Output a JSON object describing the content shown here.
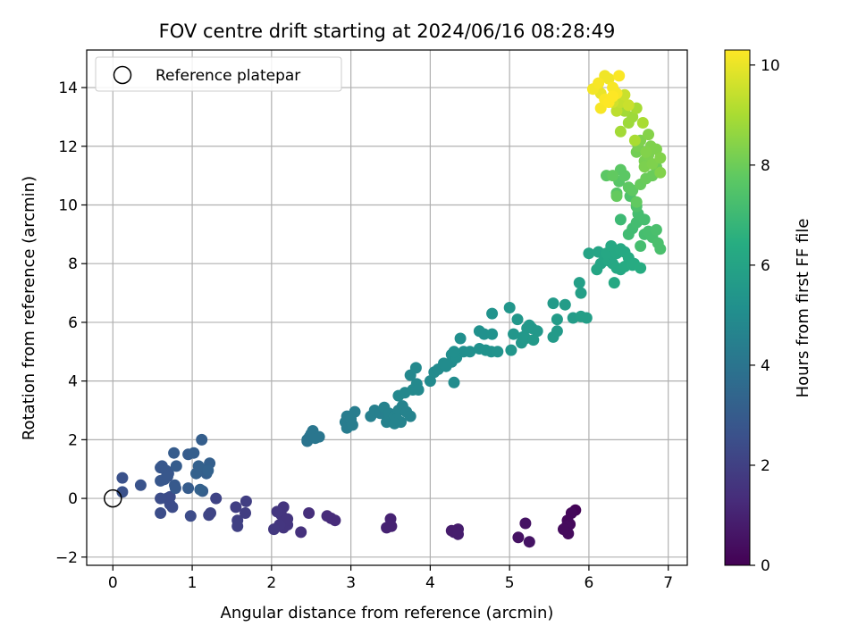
{
  "chart_data": {
    "type": "scatter",
    "title": "FOV centre drift starting at 2024/06/16 08:28:49",
    "xlabel": "Angular distance from reference (arcmin)",
    "ylabel": "Rotation from reference (arcmin)",
    "xlim": [
      -0.33,
      7.24
    ],
    "ylim": [
      -2.28,
      15.28
    ],
    "xticks": [
      0,
      1,
      2,
      3,
      4,
      5,
      6,
      7
    ],
    "yticks": [
      -2,
      0,
      2,
      4,
      6,
      8,
      10,
      12,
      14
    ],
    "grid": true,
    "legend": {
      "placement": "top-left",
      "entries": [
        "Reference platepar"
      ]
    },
    "reference_point": {
      "x": 0,
      "y": 0,
      "marker": "hollow-circle",
      "label": "Reference platepar"
    },
    "colorbar": {
      "label": "Hours from first FF file",
      "range": [
        0,
        10.3
      ],
      "ticks": [
        0,
        2,
        4,
        6,
        8,
        10
      ],
      "colormap": "viridis"
    },
    "series": [
      {
        "points": [
          [
            5.83,
            -0.4,
            0.1
          ],
          [
            5.78,
            -0.5,
            0.2
          ],
          [
            5.73,
            -0.75,
            0.2
          ],
          [
            5.72,
            -0.95,
            0.3
          ],
          [
            5.74,
            -1.2,
            0.3
          ],
          [
            5.68,
            -1.05,
            0.3
          ],
          [
            5.76,
            -0.88,
            0.25
          ],
          [
            5.2,
            -0.85,
            0.5
          ],
          [
            5.11,
            -1.33,
            0.5
          ],
          [
            5.25,
            -1.48,
            0.55
          ],
          [
            4.35,
            -1.05,
            0.8
          ],
          [
            4.3,
            -1.15,
            0.8
          ],
          [
            4.35,
            -1.22,
            0.85
          ],
          [
            4.27,
            -1.1,
            0.8
          ],
          [
            3.5,
            -0.7,
            1.0
          ],
          [
            3.45,
            -1.0,
            1.0
          ],
          [
            3.51,
            -0.95,
            1.0
          ],
          [
            2.8,
            -0.75,
            1.3
          ],
          [
            2.7,
            -0.6,
            1.3
          ],
          [
            2.75,
            -0.68,
            1.25
          ],
          [
            2.47,
            -0.5,
            1.4
          ],
          [
            2.37,
            -1.15,
            1.45
          ],
          [
            2.2,
            -0.7,
            1.6
          ],
          [
            2.15,
            -0.3,
            1.6
          ],
          [
            2.07,
            -0.45,
            1.65
          ],
          [
            2.1,
            -0.9,
            1.65
          ],
          [
            2.2,
            -0.9,
            1.6
          ],
          [
            2.15,
            -1.0,
            1.6
          ],
          [
            2.03,
            -1.05,
            1.7
          ],
          [
            2.12,
            -0.55,
            1.6
          ],
          [
            2.18,
            -0.75,
            1.6
          ],
          [
            1.68,
            -0.1,
            1.9
          ],
          [
            1.67,
            -0.5,
            1.9
          ],
          [
            1.55,
            -0.3,
            1.95
          ],
          [
            1.57,
            -0.75,
            2.0
          ],
          [
            1.57,
            -0.95,
            2.0
          ],
          [
            1.3,
            0.0,
            2.1
          ],
          [
            1.23,
            -0.5,
            2.15
          ],
          [
            1.21,
            -0.57,
            2.15
          ],
          [
            0.98,
            -0.6,
            2.4
          ],
          [
            0.75,
            -0.3,
            2.4
          ],
          [
            0.72,
            -0.2,
            2.4
          ],
          [
            0.6,
            -0.5,
            2.45
          ],
          [
            0.68,
            0.0,
            2.4
          ],
          [
            0.72,
            0.05,
            2.4
          ],
          [
            0.6,
            0.0,
            2.45
          ],
          [
            0.12,
            0.7,
            2.6
          ],
          [
            0.12,
            0.22,
            2.6
          ],
          [
            0.35,
            0.45,
            2.65
          ],
          [
            0.6,
            1.05,
            2.8
          ],
          [
            0.65,
            0.65,
            2.8
          ],
          [
            0.7,
            0.85,
            2.8
          ],
          [
            0.6,
            0.6,
            2.8
          ],
          [
            0.62,
            1.1,
            2.8
          ],
          [
            0.67,
            0.95,
            2.8
          ],
          [
            0.69,
            0.75,
            2.8
          ],
          [
            0.78,
            0.45,
            2.9
          ],
          [
            0.79,
            0.35,
            2.9
          ],
          [
            0.95,
            0.35,
            3.0
          ],
          [
            0.95,
            1.5,
            3.0
          ],
          [
            0.8,
            1.1,
            3.0
          ],
          [
            0.77,
            1.55,
            3.0
          ],
          [
            1.02,
            1.55,
            3.1
          ],
          [
            1.1,
            1.0,
            3.1
          ],
          [
            1.15,
            0.95,
            3.1
          ],
          [
            1.12,
            2.0,
            3.1
          ],
          [
            1.22,
            1.2,
            3.15
          ],
          [
            1.13,
            0.25,
            3.1
          ],
          [
            1.18,
            0.85,
            3.15
          ],
          [
            1.05,
            0.85,
            3.2
          ],
          [
            1.08,
            1.1,
            3.2
          ],
          [
            1.1,
            0.3,
            3.2
          ],
          [
            1.2,
            0.95,
            3.25
          ],
          [
            2.45,
            2.0,
            4.0
          ],
          [
            2.5,
            2.2,
            4.0
          ],
          [
            2.52,
            2.3,
            4.05
          ],
          [
            2.55,
            2.05,
            4.05
          ],
          [
            2.6,
            2.1,
            4.05
          ],
          [
            2.48,
            2.1,
            4.0
          ],
          [
            2.45,
            1.95,
            4.0
          ],
          [
            2.93,
            2.6,
            4.3
          ],
          [
            2.95,
            2.4,
            4.3
          ],
          [
            3.0,
            2.6,
            4.3
          ],
          [
            3.05,
            2.95,
            4.35
          ],
          [
            3.0,
            2.7,
            4.35
          ],
          [
            2.95,
            2.8,
            4.3
          ],
          [
            3.02,
            2.5,
            4.35
          ],
          [
            3.25,
            2.8,
            4.5
          ],
          [
            3.3,
            3.0,
            4.5
          ],
          [
            3.37,
            2.9,
            4.5
          ],
          [
            3.42,
            3.1,
            4.55
          ],
          [
            3.48,
            2.9,
            4.55
          ],
          [
            3.45,
            2.6,
            4.55
          ],
          [
            3.55,
            2.8,
            4.6
          ],
          [
            3.6,
            3.0,
            4.6
          ],
          [
            3.65,
            3.15,
            4.6
          ],
          [
            3.63,
            2.6,
            4.6
          ],
          [
            3.58,
            2.7,
            4.6
          ],
          [
            3.7,
            2.95,
            4.6
          ],
          [
            3.75,
            2.8,
            4.6
          ],
          [
            3.55,
            2.55,
            4.6
          ],
          [
            3.6,
            3.5,
            4.8
          ],
          [
            3.68,
            3.6,
            4.8
          ],
          [
            3.75,
            4.2,
            4.8
          ],
          [
            3.82,
            4.45,
            4.85
          ],
          [
            3.78,
            3.7,
            4.85
          ],
          [
            3.83,
            3.9,
            4.85
          ],
          [
            3.85,
            3.7,
            4.85
          ],
          [
            4.0,
            4.0,
            4.9
          ],
          [
            4.05,
            4.3,
            4.95
          ],
          [
            4.1,
            4.4,
            4.95
          ],
          [
            4.17,
            4.6,
            5.0
          ],
          [
            4.27,
            4.65,
            5.0
          ],
          [
            4.3,
            3.95,
            5.0
          ],
          [
            4.2,
            4.5,
            5.0
          ],
          [
            4.27,
            4.9,
            5.05
          ],
          [
            4.38,
            5.45,
            5.1
          ],
          [
            4.33,
            4.8,
            5.1
          ],
          [
            4.42,
            5.0,
            5.1
          ],
          [
            4.3,
            5.0,
            5.1
          ],
          [
            4.5,
            5.0,
            5.15
          ],
          [
            4.62,
            5.1,
            5.2
          ],
          [
            4.62,
            5.7,
            5.2
          ],
          [
            4.68,
            5.6,
            5.2
          ],
          [
            4.7,
            5.05,
            5.25
          ],
          [
            4.77,
            5.0,
            5.25
          ],
          [
            4.78,
            5.6,
            5.25
          ],
          [
            4.78,
            6.3,
            5.3
          ],
          [
            4.85,
            5.0,
            5.3
          ],
          [
            5.0,
            6.5,
            5.4
          ],
          [
            5.02,
            5.05,
            5.4
          ],
          [
            5.05,
            5.6,
            5.4
          ],
          [
            5.1,
            6.1,
            5.45
          ],
          [
            5.17,
            5.5,
            5.45
          ],
          [
            5.25,
            5.9,
            5.5
          ],
          [
            5.28,
            5.8,
            5.5
          ],
          [
            5.35,
            5.7,
            5.5
          ],
          [
            5.15,
            5.3,
            5.45
          ],
          [
            5.2,
            5.45,
            5.5
          ],
          [
            5.22,
            5.8,
            5.5
          ],
          [
            5.3,
            5.4,
            5.55
          ],
          [
            5.55,
            6.65,
            5.6
          ],
          [
            5.55,
            5.5,
            5.6
          ],
          [
            5.6,
            5.7,
            5.6
          ],
          [
            5.7,
            6.6,
            5.7
          ],
          [
            5.8,
            6.15,
            5.7
          ],
          [
            5.9,
            6.2,
            5.75
          ],
          [
            5.97,
            6.15,
            5.75
          ],
          [
            5.9,
            7.0,
            5.8
          ],
          [
            5.88,
            7.35,
            5.8
          ],
          [
            5.6,
            6.1,
            5.65
          ],
          [
            6.0,
            8.35,
            6.0
          ],
          [
            6.12,
            8.4,
            6.05
          ],
          [
            6.15,
            8.0,
            6.05
          ],
          [
            6.2,
            8.2,
            6.1
          ],
          [
            6.25,
            8.1,
            6.15
          ],
          [
            6.3,
            8.3,
            6.15
          ],
          [
            6.35,
            8.35,
            6.2
          ],
          [
            6.4,
            8.5,
            6.25
          ],
          [
            6.45,
            8.4,
            6.25
          ],
          [
            6.3,
            8.0,
            6.15
          ],
          [
            6.35,
            7.85,
            6.2
          ],
          [
            6.4,
            7.8,
            6.2
          ],
          [
            6.32,
            7.35,
            6.2
          ],
          [
            6.45,
            7.9,
            6.3
          ],
          [
            6.55,
            7.95,
            6.35
          ],
          [
            6.57,
            8.0,
            6.35
          ],
          [
            6.65,
            7.85,
            6.4
          ],
          [
            6.28,
            8.6,
            6.2
          ],
          [
            6.22,
            8.35,
            6.15
          ],
          [
            6.1,
            7.8,
            6.1
          ],
          [
            6.5,
            8.2,
            6.3
          ],
          [
            6.4,
            9.5,
            7.0
          ],
          [
            6.5,
            9.0,
            7.1
          ],
          [
            6.55,
            9.2,
            7.1
          ],
          [
            6.6,
            9.4,
            7.15
          ],
          [
            6.62,
            9.7,
            7.2
          ],
          [
            6.7,
            9.5,
            7.2
          ],
          [
            6.75,
            9.1,
            7.25
          ],
          [
            6.8,
            8.9,
            7.25
          ],
          [
            6.85,
            9.15,
            7.3
          ],
          [
            6.87,
            8.7,
            7.3
          ],
          [
            6.9,
            8.5,
            7.3
          ],
          [
            6.65,
            8.6,
            7.2
          ],
          [
            6.7,
            9.0,
            7.2
          ],
          [
            6.52,
            10.3,
            7.4
          ],
          [
            6.6,
            9.95,
            7.4
          ],
          [
            6.35,
            10.4,
            7.6
          ],
          [
            6.38,
            10.8,
            7.6
          ],
          [
            6.4,
            11.2,
            7.7
          ],
          [
            6.45,
            11.0,
            7.7
          ],
          [
            6.5,
            10.6,
            7.75
          ],
          [
            6.55,
            10.5,
            7.75
          ],
          [
            6.6,
            10.1,
            7.8
          ],
          [
            6.3,
            11.0,
            7.8
          ],
          [
            6.35,
            10.3,
            7.85
          ],
          [
            6.65,
            10.7,
            7.9
          ],
          [
            6.72,
            10.9,
            7.95
          ],
          [
            6.8,
            11.0,
            7.95
          ],
          [
            6.85,
            11.3,
            8.0
          ],
          [
            6.22,
            11.0,
            7.7
          ],
          [
            6.6,
            11.8,
            8.1
          ],
          [
            6.62,
            12.0,
            8.2
          ],
          [
            6.7,
            11.5,
            8.2
          ],
          [
            6.75,
            11.7,
            8.25
          ],
          [
            6.78,
            12.0,
            8.3
          ],
          [
            6.85,
            11.9,
            8.3
          ],
          [
            6.9,
            11.6,
            8.35
          ],
          [
            6.9,
            11.1,
            8.35
          ],
          [
            6.7,
            11.3,
            8.25
          ],
          [
            6.65,
            12.2,
            8.3
          ],
          [
            6.75,
            12.4,
            8.4
          ],
          [
            6.8,
            11.4,
            8.3
          ],
          [
            6.72,
            11.8,
            8.35
          ],
          [
            6.5,
            12.8,
            8.8
          ],
          [
            6.55,
            13.0,
            8.8
          ],
          [
            6.45,
            13.2,
            8.9
          ],
          [
            6.6,
            13.3,
            8.95
          ],
          [
            6.68,
            12.8,
            9.0
          ],
          [
            6.58,
            12.2,
            9.0
          ],
          [
            6.4,
            12.5,
            8.9
          ],
          [
            6.35,
            13.2,
            9.3
          ],
          [
            6.4,
            13.5,
            9.4
          ],
          [
            6.45,
            13.75,
            9.5
          ],
          [
            6.5,
            13.4,
            9.5
          ],
          [
            6.3,
            13.5,
            9.6
          ],
          [
            6.1,
            14.0,
            10.0
          ],
          [
            6.15,
            13.8,
            10.0
          ],
          [
            6.2,
            14.4,
            10.1
          ],
          [
            6.25,
            14.3,
            10.1
          ],
          [
            6.3,
            14.0,
            10.2
          ],
          [
            6.35,
            13.8,
            10.2
          ],
          [
            6.38,
            14.4,
            10.25
          ],
          [
            6.2,
            13.6,
            10.25
          ],
          [
            6.15,
            13.3,
            10.2
          ],
          [
            6.25,
            13.5,
            10.3
          ],
          [
            6.3,
            13.7,
            10.3
          ],
          [
            6.05,
            13.95,
            10.15
          ],
          [
            6.12,
            14.15,
            10.2
          ]
        ]
      }
    ]
  }
}
